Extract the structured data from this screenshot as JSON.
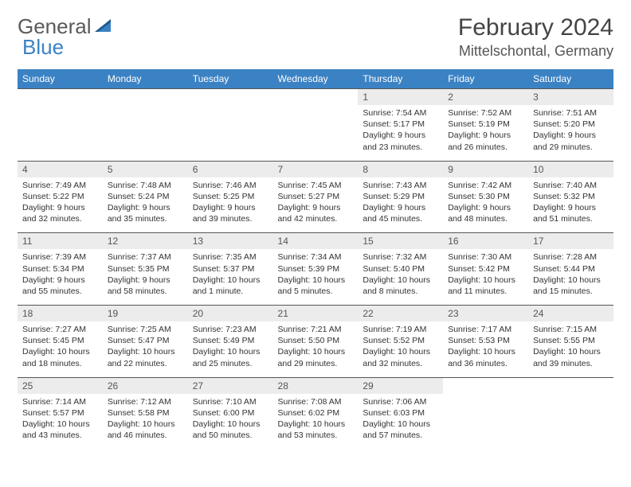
{
  "brand": {
    "part1": "General",
    "part2": "Blue"
  },
  "title": "February 2024",
  "location": "Mittelschontal, Germany",
  "colors": {
    "header_bg": "#3b82c4",
    "header_text": "#ffffff",
    "daynum_bg": "#ececec",
    "border": "#555555",
    "body_text": "#333333"
  },
  "weekdays": [
    "Sunday",
    "Monday",
    "Tuesday",
    "Wednesday",
    "Thursday",
    "Friday",
    "Saturday"
  ],
  "weeks": [
    {
      "nums": [
        "",
        "",
        "",
        "",
        "1",
        "2",
        "3"
      ],
      "cells": [
        null,
        null,
        null,
        null,
        {
          "sunrise": "Sunrise: 7:54 AM",
          "sunset": "Sunset: 5:17 PM",
          "day1": "Daylight: 9 hours",
          "day2": "and 23 minutes."
        },
        {
          "sunrise": "Sunrise: 7:52 AM",
          "sunset": "Sunset: 5:19 PM",
          "day1": "Daylight: 9 hours",
          "day2": "and 26 minutes."
        },
        {
          "sunrise": "Sunrise: 7:51 AM",
          "sunset": "Sunset: 5:20 PM",
          "day1": "Daylight: 9 hours",
          "day2": "and 29 minutes."
        }
      ]
    },
    {
      "nums": [
        "4",
        "5",
        "6",
        "7",
        "8",
        "9",
        "10"
      ],
      "cells": [
        {
          "sunrise": "Sunrise: 7:49 AM",
          "sunset": "Sunset: 5:22 PM",
          "day1": "Daylight: 9 hours",
          "day2": "and 32 minutes."
        },
        {
          "sunrise": "Sunrise: 7:48 AM",
          "sunset": "Sunset: 5:24 PM",
          "day1": "Daylight: 9 hours",
          "day2": "and 35 minutes."
        },
        {
          "sunrise": "Sunrise: 7:46 AM",
          "sunset": "Sunset: 5:25 PM",
          "day1": "Daylight: 9 hours",
          "day2": "and 39 minutes."
        },
        {
          "sunrise": "Sunrise: 7:45 AM",
          "sunset": "Sunset: 5:27 PM",
          "day1": "Daylight: 9 hours",
          "day2": "and 42 minutes."
        },
        {
          "sunrise": "Sunrise: 7:43 AM",
          "sunset": "Sunset: 5:29 PM",
          "day1": "Daylight: 9 hours",
          "day2": "and 45 minutes."
        },
        {
          "sunrise": "Sunrise: 7:42 AM",
          "sunset": "Sunset: 5:30 PM",
          "day1": "Daylight: 9 hours",
          "day2": "and 48 minutes."
        },
        {
          "sunrise": "Sunrise: 7:40 AM",
          "sunset": "Sunset: 5:32 PM",
          "day1": "Daylight: 9 hours",
          "day2": "and 51 minutes."
        }
      ]
    },
    {
      "nums": [
        "11",
        "12",
        "13",
        "14",
        "15",
        "16",
        "17"
      ],
      "cells": [
        {
          "sunrise": "Sunrise: 7:39 AM",
          "sunset": "Sunset: 5:34 PM",
          "day1": "Daylight: 9 hours",
          "day2": "and 55 minutes."
        },
        {
          "sunrise": "Sunrise: 7:37 AM",
          "sunset": "Sunset: 5:35 PM",
          "day1": "Daylight: 9 hours",
          "day2": "and 58 minutes."
        },
        {
          "sunrise": "Sunrise: 7:35 AM",
          "sunset": "Sunset: 5:37 PM",
          "day1": "Daylight: 10 hours",
          "day2": "and 1 minute."
        },
        {
          "sunrise": "Sunrise: 7:34 AM",
          "sunset": "Sunset: 5:39 PM",
          "day1": "Daylight: 10 hours",
          "day2": "and 5 minutes."
        },
        {
          "sunrise": "Sunrise: 7:32 AM",
          "sunset": "Sunset: 5:40 PM",
          "day1": "Daylight: 10 hours",
          "day2": "and 8 minutes."
        },
        {
          "sunrise": "Sunrise: 7:30 AM",
          "sunset": "Sunset: 5:42 PM",
          "day1": "Daylight: 10 hours",
          "day2": "and 11 minutes."
        },
        {
          "sunrise": "Sunrise: 7:28 AM",
          "sunset": "Sunset: 5:44 PM",
          "day1": "Daylight: 10 hours",
          "day2": "and 15 minutes."
        }
      ]
    },
    {
      "nums": [
        "18",
        "19",
        "20",
        "21",
        "22",
        "23",
        "24"
      ],
      "cells": [
        {
          "sunrise": "Sunrise: 7:27 AM",
          "sunset": "Sunset: 5:45 PM",
          "day1": "Daylight: 10 hours",
          "day2": "and 18 minutes."
        },
        {
          "sunrise": "Sunrise: 7:25 AM",
          "sunset": "Sunset: 5:47 PM",
          "day1": "Daylight: 10 hours",
          "day2": "and 22 minutes."
        },
        {
          "sunrise": "Sunrise: 7:23 AM",
          "sunset": "Sunset: 5:49 PM",
          "day1": "Daylight: 10 hours",
          "day2": "and 25 minutes."
        },
        {
          "sunrise": "Sunrise: 7:21 AM",
          "sunset": "Sunset: 5:50 PM",
          "day1": "Daylight: 10 hours",
          "day2": "and 29 minutes."
        },
        {
          "sunrise": "Sunrise: 7:19 AM",
          "sunset": "Sunset: 5:52 PM",
          "day1": "Daylight: 10 hours",
          "day2": "and 32 minutes."
        },
        {
          "sunrise": "Sunrise: 7:17 AM",
          "sunset": "Sunset: 5:53 PM",
          "day1": "Daylight: 10 hours",
          "day2": "and 36 minutes."
        },
        {
          "sunrise": "Sunrise: 7:15 AM",
          "sunset": "Sunset: 5:55 PM",
          "day1": "Daylight: 10 hours",
          "day2": "and 39 minutes."
        }
      ]
    },
    {
      "nums": [
        "25",
        "26",
        "27",
        "28",
        "29",
        "",
        ""
      ],
      "cells": [
        {
          "sunrise": "Sunrise: 7:14 AM",
          "sunset": "Sunset: 5:57 PM",
          "day1": "Daylight: 10 hours",
          "day2": "and 43 minutes."
        },
        {
          "sunrise": "Sunrise: 7:12 AM",
          "sunset": "Sunset: 5:58 PM",
          "day1": "Daylight: 10 hours",
          "day2": "and 46 minutes."
        },
        {
          "sunrise": "Sunrise: 7:10 AM",
          "sunset": "Sunset: 6:00 PM",
          "day1": "Daylight: 10 hours",
          "day2": "and 50 minutes."
        },
        {
          "sunrise": "Sunrise: 7:08 AM",
          "sunset": "Sunset: 6:02 PM",
          "day1": "Daylight: 10 hours",
          "day2": "and 53 minutes."
        },
        {
          "sunrise": "Sunrise: 7:06 AM",
          "sunset": "Sunset: 6:03 PM",
          "day1": "Daylight: 10 hours",
          "day2": "and 57 minutes."
        },
        null,
        null
      ]
    }
  ]
}
